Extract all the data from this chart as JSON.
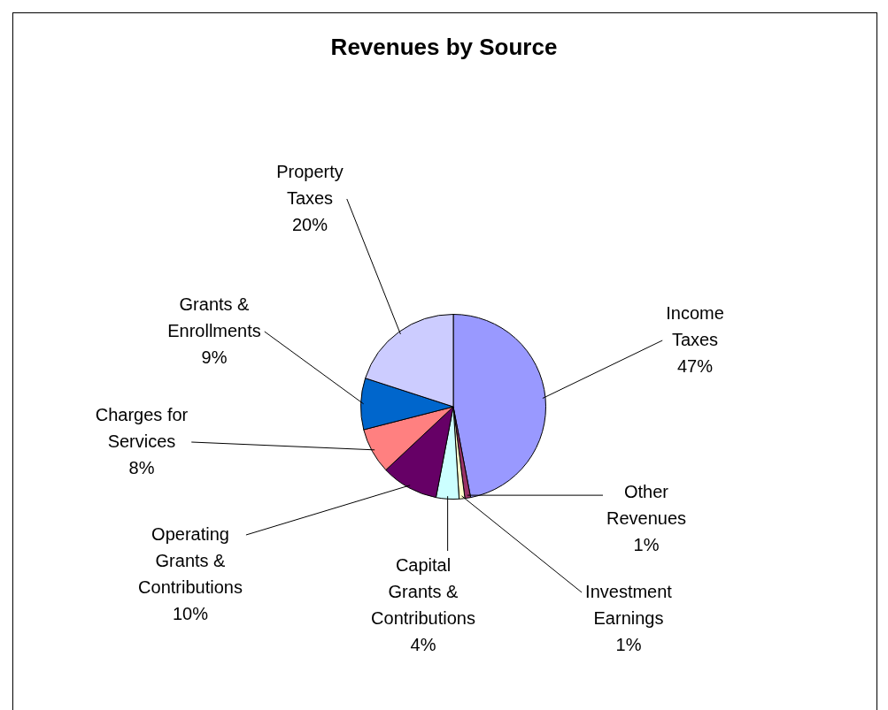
{
  "chart_data": {
    "type": "pie",
    "title": "Revenues by Source",
    "categories": [
      "Income Taxes",
      "Other Revenues",
      "Investment Earnings",
      "Capital Grants & Contributions",
      "Operating Grants & Contributions",
      "Charges for Services",
      "Grants & Enrollments",
      "Property Taxes"
    ],
    "values": [
      47,
      1,
      1,
      4,
      10,
      8,
      9,
      20
    ],
    "colors": [
      "#9999ff",
      "#993366",
      "#ffffcc",
      "#ccffff",
      "#660066",
      "#ff8080",
      "#0066cc",
      "#ccccff"
    ],
    "value_labels": [
      "47%",
      "1%",
      "1%",
      "4%",
      "10%",
      "8%",
      "9%",
      "20%"
    ],
    "legend": false
  }
}
